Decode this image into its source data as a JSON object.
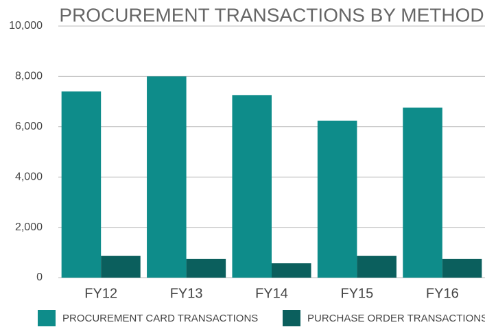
{
  "chart_data": {
    "type": "bar",
    "title": "PROCUREMENT TRANSACTIONS BY METHOD",
    "categories": [
      "FY12",
      "FY13",
      "FY14",
      "FY15",
      "FY16"
    ],
    "series": [
      {
        "name": "PROCUREMENT CARD TRANSACTIONS",
        "color": "#0e8c8a",
        "values": [
          7400,
          8000,
          7250,
          6240,
          6760
        ]
      },
      {
        "name": "PURCHASE ORDER TRANSACTIONS",
        "color": "#0b5f5d",
        "values": [
          870,
          740,
          570,
          870,
          740
        ]
      }
    ],
    "ylim": [
      0,
      10000
    ],
    "yticks": [
      0,
      {
        "value": 2000,
        "label": "2,000"
      },
      {
        "value": 4000,
        "label": "4,000"
      },
      {
        "value": 6000,
        "label": "6,000"
      },
      {
        "value": 8000,
        "label": "8,000"
      },
      {
        "value": 10000,
        "label": "10,000"
      }
    ],
    "grid": true,
    "legend": "bottom"
  }
}
